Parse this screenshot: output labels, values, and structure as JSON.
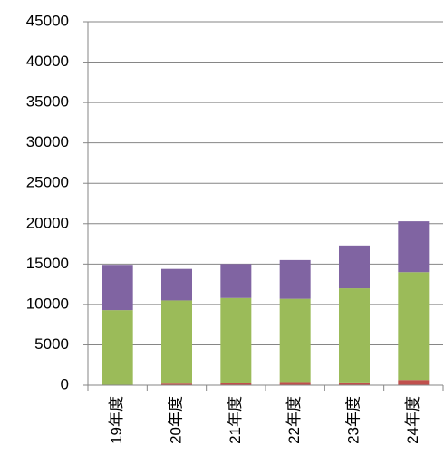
{
  "chart_data": {
    "type": "stacked_bar",
    "categories": [
      "19年度",
      "20年度",
      "21年度",
      "22年度",
      "23年度",
      "24年度"
    ],
    "series": [
      {
        "color": "#c0504d",
        "values": [
          50,
          200,
          300,
          400,
          350,
          650
        ]
      },
      {
        "color": "#9bbb59",
        "values": [
          9250,
          10300,
          10500,
          10300,
          11650,
          13350
        ]
      },
      {
        "color": "#8064a2",
        "values": [
          5600,
          3900,
          4200,
          4800,
          5300,
          6300
        ]
      }
    ],
    "ylim": [
      0,
      45000
    ],
    "yticks": [
      0,
      5000,
      10000,
      15000,
      20000,
      25000,
      30000,
      35000,
      40000,
      45000
    ],
    "grid": true
  }
}
